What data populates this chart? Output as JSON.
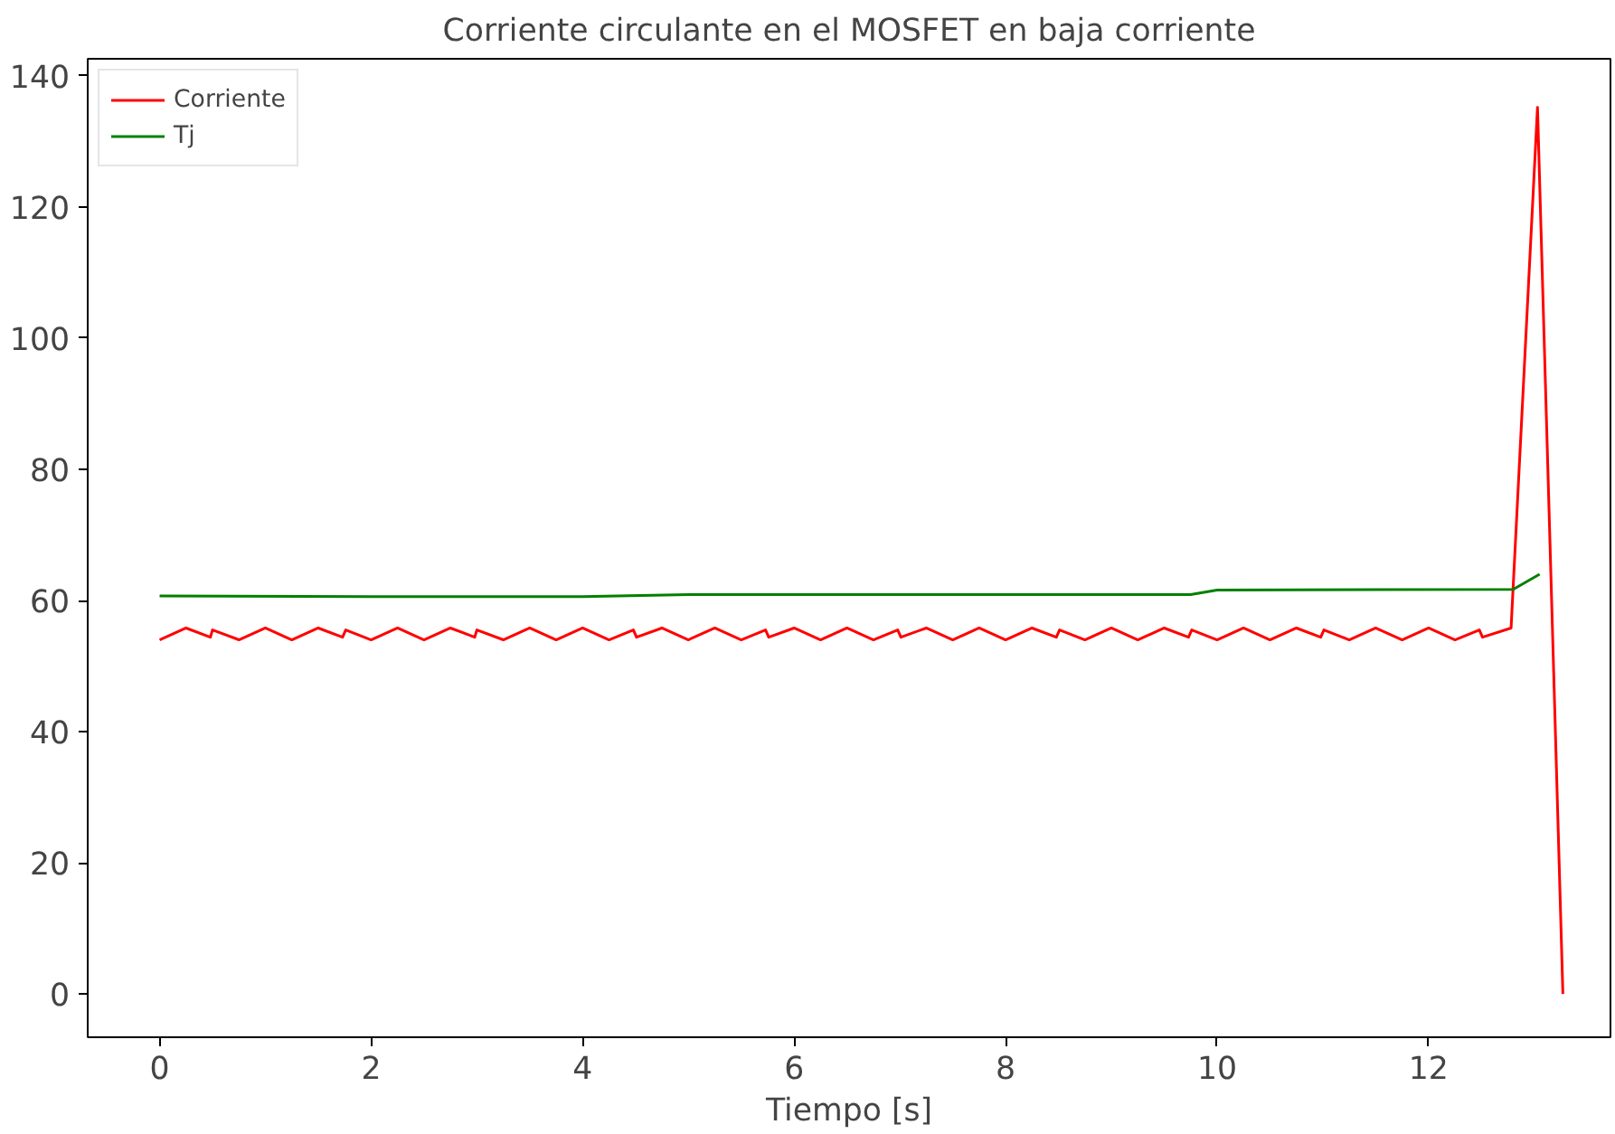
{
  "chart_data": {
    "type": "line",
    "title": "Corriente circulante en el MOSFET en baja corriente",
    "xlabel": "Tiempo [s]",
    "xlim": [
      -0.68,
      13.72
    ],
    "ylim": [
      -6.6,
      142.6
    ],
    "xticks": [
      0,
      2,
      4,
      6,
      8,
      10,
      12
    ],
    "yticks": [
      0,
      20,
      40,
      60,
      80,
      100,
      120,
      140
    ],
    "grid": false,
    "legend": "top left",
    "marker": "none",
    "line_style": "solid",
    "series": [
      {
        "name": "Corriente",
        "color": "#ff0000",
        "x": [
          0,
          0.25,
          0.48,
          0.5,
          0.75,
          1,
          1.25,
          1.5,
          1.73,
          1.76,
          2,
          2.25,
          2.5,
          2.75,
          2.98,
          3.0,
          3.25,
          3.5,
          3.75,
          4,
          4.25,
          4.48,
          4.51,
          4.75,
          5,
          5.25,
          5.5,
          5.73,
          5.76,
          6,
          6.25,
          6.5,
          6.75,
          6.98,
          7.01,
          7.25,
          7.5,
          7.75,
          8,
          8.25,
          8.48,
          8.51,
          8.75,
          9,
          9.25,
          9.5,
          9.73,
          9.76,
          10,
          10.25,
          10.5,
          10.75,
          10.98,
          11.01,
          11.25,
          11.5,
          11.75,
          12,
          12.25,
          12.48,
          12.51,
          12.78,
          13.03,
          13.27
        ],
        "values": [
          54.0,
          55.8,
          54.4,
          55.5,
          54.0,
          55.8,
          54.0,
          55.8,
          54.4,
          55.5,
          54.0,
          55.8,
          54.0,
          55.8,
          54.4,
          55.5,
          54.0,
          55.8,
          54.0,
          55.8,
          54.0,
          55.5,
          54.4,
          55.8,
          54.0,
          55.8,
          54.0,
          55.5,
          54.4,
          55.8,
          54.0,
          55.8,
          54.0,
          55.5,
          54.4,
          55.8,
          54.0,
          55.8,
          54.0,
          55.8,
          54.4,
          55.5,
          54.0,
          55.8,
          54.0,
          55.8,
          54.4,
          55.5,
          54.0,
          55.8,
          54.0,
          55.8,
          54.4,
          55.5,
          54.0,
          55.8,
          54.0,
          55.8,
          54.0,
          55.5,
          54.4,
          55.8,
          135.2,
          0.0
        ]
      },
      {
        "name": "Tj",
        "color": "#008000",
        "x": [
          0,
          2,
          4,
          5,
          7,
          9.75,
          10,
          12.8,
          13.05
        ],
        "values": [
          60.7,
          60.6,
          60.6,
          60.9,
          60.9,
          60.9,
          61.6,
          61.7,
          64.0
        ]
      }
    ]
  }
}
